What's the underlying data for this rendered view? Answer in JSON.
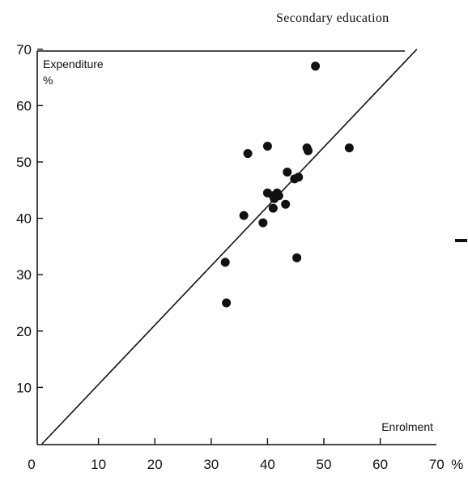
{
  "page_title": "Secondary education",
  "chart_data": {
    "type": "scatter",
    "title": "Secondary education",
    "xlabel": "Enrolment",
    "xunit": "%",
    "ylabel": "Expenditure",
    "yunit": "%",
    "xlim": [
      0,
      70
    ],
    "ylim": [
      0,
      70
    ],
    "x_ticks": [
      0,
      10,
      20,
      30,
      40,
      50,
      60,
      70
    ],
    "x_tick_labels": [
      "0",
      "10",
      "20",
      "30",
      "40",
      "50",
      "60",
      "70"
    ],
    "y_ticks": [
      10,
      20,
      30,
      40,
      50,
      60,
      70
    ],
    "y_tick_labels": [
      "10",
      "20",
      "30",
      "40",
      "50",
      "60",
      "70"
    ],
    "grid": false,
    "reference_line": {
      "from": [
        0,
        0
      ],
      "to": [
        66.5,
        70
      ]
    },
    "points": [
      {
        "x": 48.5,
        "y": 67.0
      },
      {
        "x": 36.5,
        "y": 51.5
      },
      {
        "x": 40.0,
        "y": 52.8
      },
      {
        "x": 47.0,
        "y": 52.5
      },
      {
        "x": 47.2,
        "y": 52.0
      },
      {
        "x": 54.5,
        "y": 52.5
      },
      {
        "x": 43.5,
        "y": 48.2
      },
      {
        "x": 44.8,
        "y": 47.0
      },
      {
        "x": 45.5,
        "y": 47.3
      },
      {
        "x": 40.0,
        "y": 44.5
      },
      {
        "x": 41.0,
        "y": 44.0
      },
      {
        "x": 41.7,
        "y": 44.5
      },
      {
        "x": 42.0,
        "y": 44.0
      },
      {
        "x": 41.2,
        "y": 43.5
      },
      {
        "x": 35.8,
        "y": 40.5
      },
      {
        "x": 41.0,
        "y": 41.8
      },
      {
        "x": 43.2,
        "y": 42.5
      },
      {
        "x": 39.2,
        "y": 39.2
      },
      {
        "x": 32.5,
        "y": 32.2
      },
      {
        "x": 45.2,
        "y": 33.0
      },
      {
        "x": 32.7,
        "y": 25.0
      }
    ]
  }
}
